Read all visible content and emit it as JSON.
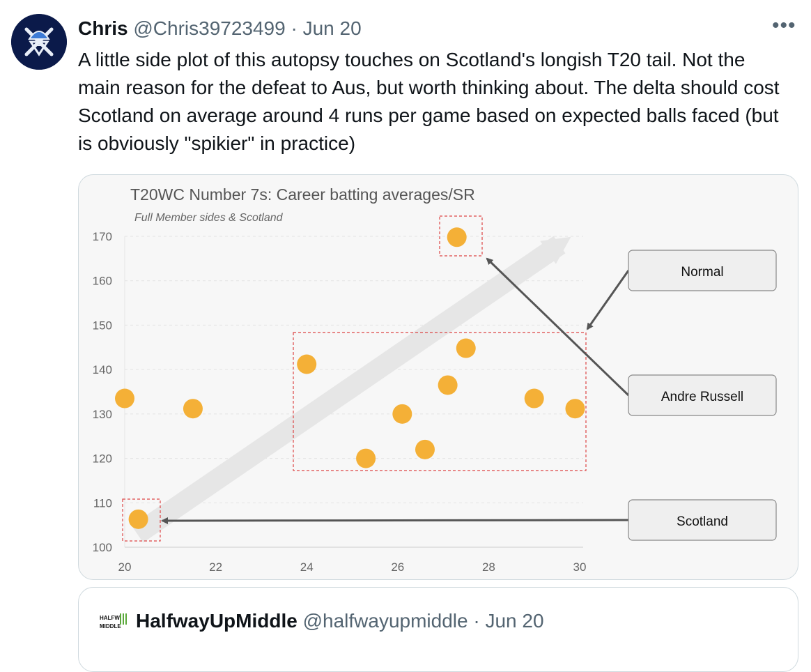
{
  "tweet": {
    "author_name": "Chris",
    "author_handle": "@Chris39723499",
    "separator": "·",
    "date": "Jun 20",
    "more_icon": "more-icon",
    "text": "A little side plot of this autopsy touches on Scotland's longish T20 tail. Not the main reason for the defeat to Aus, but worth thinking about. The delta should cost Scotland on average around 4 runs per game based on expected balls faced (but is obviously \"spikier\" in practice)"
  },
  "chart_data": {
    "type": "scatter",
    "title": "T20WC Number 7s: Career batting averages/SR",
    "subtitle": "Full Member sides & Scotland",
    "xlabel": "",
    "ylabel": "",
    "xlim": [
      20,
      30
    ],
    "ylim": [
      100,
      170
    ],
    "x_ticks": [
      20,
      22,
      24,
      26,
      28,
      30
    ],
    "y_ticks": [
      100,
      110,
      120,
      130,
      140,
      150,
      160,
      170
    ],
    "grid": true,
    "point_color": "#f4b037",
    "points": [
      {
        "x": 20.0,
        "y": 133.5
      },
      {
        "x": 21.5,
        "y": 131.2
      },
      {
        "x": 24.0,
        "y": 141.2
      },
      {
        "x": 25.3,
        "y": 120.0
      },
      {
        "x": 26.1,
        "y": 130.0
      },
      {
        "x": 26.6,
        "y": 122.0
      },
      {
        "x": 27.1,
        "y": 136.5
      },
      {
        "x": 27.5,
        "y": 144.8
      },
      {
        "x": 29.0,
        "y": 133.5
      },
      {
        "x": 29.9,
        "y": 131.2
      },
      {
        "x": 27.3,
        "y": 169.8
      },
      {
        "x": 20.3,
        "y": 106.3
      }
    ],
    "annotations": [
      {
        "label": "Normal"
      },
      {
        "label": "Andre Russell"
      },
      {
        "label": "Scotland"
      }
    ]
  },
  "quote": {
    "author_name": "HalfwayUpMiddle",
    "author_handle": "@halfwayupmiddle",
    "separator": "·",
    "date": "Jun 20",
    "logo_text": "HALFWAY UP MIDDLE"
  }
}
